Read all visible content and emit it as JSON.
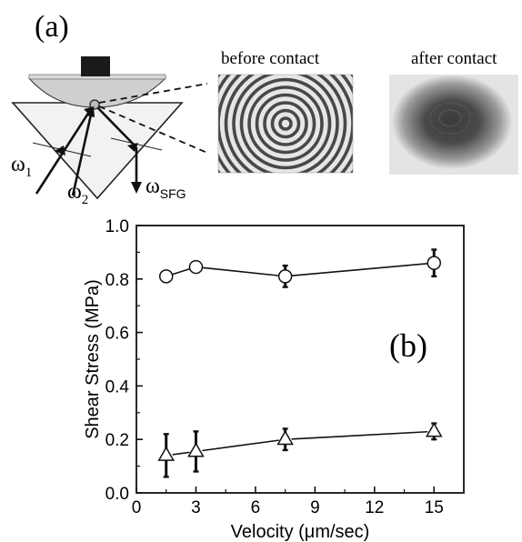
{
  "panel_a": {
    "label": "(a)",
    "image_before_caption": "before contact",
    "image_after_caption": "after contact",
    "omega1_base": "ω",
    "omega1_sub": "1",
    "omega2_base": "ω",
    "omega2_sub": "2",
    "omega_sfg_base": "ω",
    "omega_sfg_sub": "SFG"
  },
  "panel_b": {
    "label": "(b)"
  },
  "chart_data": {
    "type": "line",
    "xlabel": "Velocity (μm/sec)",
    "ylabel": "Shear Stress (MPa)",
    "xlim": [
      0,
      16.5
    ],
    "ylim": [
      0,
      1.0
    ],
    "xticks": [
      0,
      3,
      6,
      9,
      12,
      15
    ],
    "yticks": [
      0.0,
      0.2,
      0.4,
      0.6,
      0.8,
      1.0
    ],
    "xtick_labels": [
      "0",
      "3",
      "6",
      "9",
      "12",
      "15"
    ],
    "ytick_labels": [
      "0.0",
      "0.2",
      "0.4",
      "0.6",
      "0.8",
      "1.0"
    ],
    "grid": false,
    "series": [
      {
        "marker": "circle",
        "x": [
          1.5,
          3,
          7.5,
          15
        ],
        "y": [
          0.81,
          0.845,
          0.81,
          0.86
        ],
        "err": [
          0.02,
          0.015,
          0.04,
          0.05
        ]
      },
      {
        "marker": "triangle",
        "x": [
          1.5,
          3,
          7.5,
          15
        ],
        "y": [
          0.14,
          0.155,
          0.2,
          0.23
        ],
        "err": [
          0.08,
          0.075,
          0.04,
          0.03
        ]
      }
    ]
  }
}
